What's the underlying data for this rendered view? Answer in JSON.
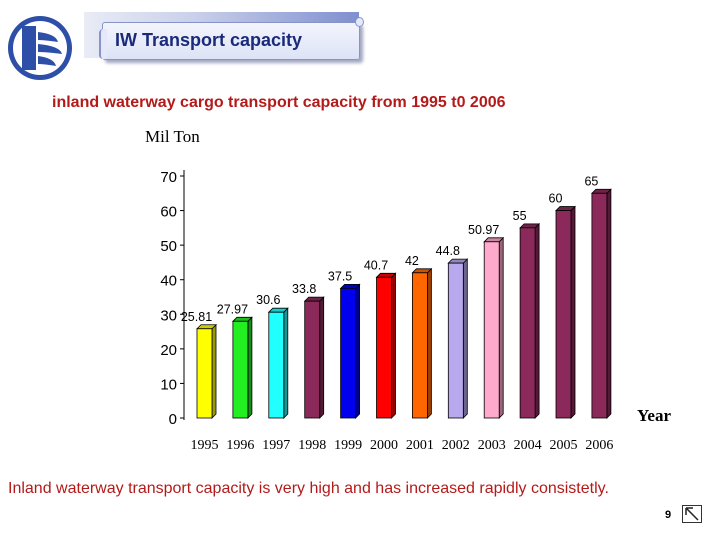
{
  "header": {
    "title": "IW Transport capacity"
  },
  "subtitle": "inland waterway cargo transport capacity from 1995 t0 2006",
  "caption": "Inland waterway transport capacity is very high and has increased rapidly consistetly.",
  "page_number": "9",
  "chart_data": {
    "type": "bar",
    "title": "",
    "ylabel": "Mil Ton",
    "xlabel": "Year",
    "ylim": [
      0,
      70
    ],
    "yticks": [
      0,
      10,
      20,
      30,
      40,
      50,
      60,
      70
    ],
    "categories": [
      "1995",
      "1996",
      "1997",
      "1998",
      "1999",
      "2000",
      "2001",
      "2002",
      "2003",
      "2004",
      "2005",
      "2006"
    ],
    "tick_labels": [
      "1995",
      "1996",
      "1997",
      "1998",
      "1999",
      "2000",
      "2001",
      "2002",
      "2003",
      "2004",
      "2005",
      "2006"
    ],
    "values": [
      25.81,
      27.97,
      30.6,
      33.8,
      37.5,
      40.7,
      42,
      44.8,
      50.97,
      55,
      60,
      65
    ],
    "data_labels": [
      "25.81",
      "27.97",
      "30.6",
      "33.8",
      "37.5",
      "40.7",
      "42",
      "44.8",
      "50.97",
      "55",
      "60",
      "65"
    ],
    "colors": [
      "#ffff00",
      "#22ee22",
      "#22ffff",
      "#8b2a5a",
      "#0000ee",
      "#ff0000",
      "#ff6600",
      "#b8a8ee",
      "#ffaacc",
      "#8b2a5a",
      "#8b2a5a",
      "#8b2a5a"
    ],
    "grid": false,
    "bar_style": "3d"
  }
}
